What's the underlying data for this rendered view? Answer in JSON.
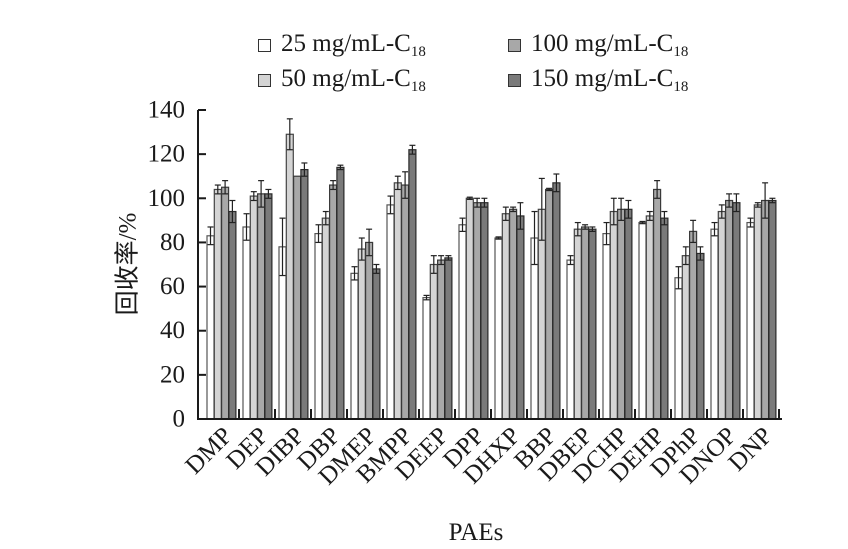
{
  "chart_data": {
    "type": "bar",
    "title": "",
    "xlabel": "PAEs",
    "ylabel": "回收率/%",
    "ylim": [
      0,
      140
    ],
    "yticks": [
      0,
      20,
      40,
      60,
      80,
      100,
      120,
      140
    ],
    "grid": false,
    "legend_position": "top",
    "categories": [
      "DMP",
      "DEP",
      "DIBP",
      "DBP",
      "DMEP",
      "BMPP",
      "DEEP",
      "DPP",
      "DHXP",
      "BBP",
      "DBEP",
      "DCHP",
      "DEHP",
      "DPhP",
      "DNOP",
      "DNP"
    ],
    "series": [
      {
        "name": "25 mg/mL-C18",
        "label_main": "25 mg/mL-C",
        "label_sub": "18",
        "color": "#ffffff",
        "values": [
          83,
          87,
          78,
          84,
          66,
          97,
          55,
          88,
          82,
          82,
          72,
          84,
          89,
          64,
          86,
          89
        ],
        "errors": [
          4,
          6,
          13,
          4,
          3,
          4,
          1,
          3,
          0.5,
          12,
          2,
          5,
          0.5,
          5,
          3,
          2
        ]
      },
      {
        "name": "50 mg/mL-C18",
        "label_main": "50 mg/mL-C",
        "label_sub": "18",
        "color": "#d4d4d4",
        "values": [
          104,
          101,
          129,
          91,
          77,
          107,
          70,
          100,
          93,
          95,
          86,
          94,
          92,
          74,
          94,
          97
        ],
        "errors": [
          2,
          2,
          7,
          3,
          5,
          3,
          4,
          0.5,
          3,
          14,
          3,
          6,
          2,
          4,
          3,
          1
        ]
      },
      {
        "name": "100 mg/mL-C18",
        "label_main": "100 mg/mL-C",
        "label_sub": "18",
        "color": "#a8a8a8",
        "values": [
          105,
          102,
          110,
          106,
          80,
          106,
          72,
          98,
          95,
          104,
          87,
          95,
          104,
          85,
          99,
          99
        ],
        "errors": [
          3,
          6,
          0,
          2,
          6,
          6,
          2,
          2,
          1,
          0.5,
          1,
          5,
          4,
          5,
          3,
          8
        ]
      },
      {
        "name": "150 mg/mL-C18",
        "label_main": "150 mg/mL-C",
        "label_sub": "18",
        "color": "#7a7a7a",
        "values": [
          94,
          102,
          113,
          114,
          68,
          122,
          73,
          98,
          92,
          107,
          86,
          95,
          91,
          75,
          98,
          99
        ],
        "errors": [
          5,
          2,
          3,
          1,
          2,
          2,
          1,
          2,
          6,
          4,
          1,
          4,
          3,
          3,
          4,
          1
        ]
      }
    ]
  }
}
